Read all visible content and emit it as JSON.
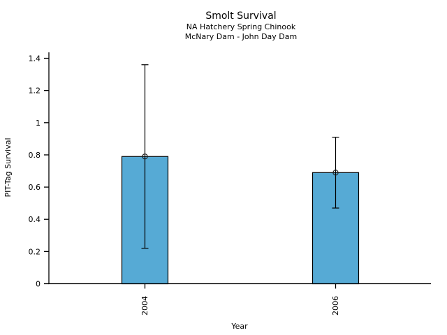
{
  "window": {
    "background": "#ffffff"
  },
  "chart_data": {
    "type": "bar",
    "title": "Smolt Survival",
    "subtitles": [
      "NA Hatchery Spring Chinook",
      "McNary Dam - John Day Dam"
    ],
    "xlabel": "Year",
    "ylabel": "PIT-Tag Survival",
    "categories": [
      "2004",
      "2006"
    ],
    "values": [
      0.79,
      0.69
    ],
    "error_low": [
      0.22,
      0.47
    ],
    "error_high": [
      1.36,
      0.91
    ],
    "marker": "open-circle",
    "ylim": [
      0,
      1.45
    ],
    "ytick_values": [
      0,
      0.2,
      0.4,
      0.6,
      0.8,
      1,
      1.2,
      1.4
    ],
    "ytick_labels": [
      "0",
      "0.2",
      "0.4",
      "0.6",
      "0.8",
      "1",
      "1.2",
      "1.4"
    ],
    "grid": false,
    "legend": "none",
    "colors": {
      "bar_fill": "#56AAD5",
      "bar_edge": "#000000",
      "axis": "#000000",
      "error_bar": "#000000",
      "text": "#000000"
    }
  }
}
